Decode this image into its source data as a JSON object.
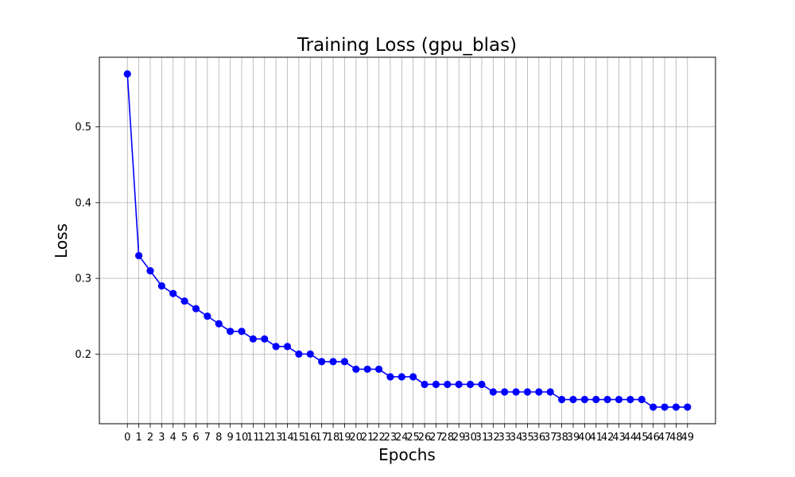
{
  "chart_data": {
    "type": "line",
    "title": "Training Loss (gpu_blas)",
    "xlabel": "Epochs",
    "ylabel": "Loss",
    "x": [
      0,
      1,
      2,
      3,
      4,
      5,
      6,
      7,
      8,
      9,
      10,
      11,
      12,
      13,
      14,
      15,
      16,
      17,
      18,
      19,
      20,
      21,
      22,
      23,
      24,
      25,
      26,
      27,
      28,
      29,
      30,
      31,
      32,
      33,
      34,
      35,
      36,
      37,
      38,
      39,
      40,
      41,
      42,
      43,
      44,
      45,
      46,
      47,
      48,
      49
    ],
    "series": [
      {
        "name": "",
        "values": [
          0.57,
          0.33,
          0.31,
          0.29,
          0.28,
          0.27,
          0.26,
          0.25,
          0.24,
          0.23,
          0.23,
          0.22,
          0.22,
          0.21,
          0.21,
          0.2,
          0.2,
          0.19,
          0.19,
          0.19,
          0.18,
          0.18,
          0.18,
          0.17,
          0.17,
          0.17,
          0.16,
          0.16,
          0.16,
          0.16,
          0.16,
          0.16,
          0.15,
          0.15,
          0.15,
          0.15,
          0.15,
          0.15,
          0.14,
          0.14,
          0.14,
          0.14,
          0.14,
          0.14,
          0.14,
          0.14,
          0.13,
          0.13,
          0.13,
          0.13
        ],
        "color": "#0000ff"
      }
    ],
    "xlim": [
      -2.45,
      51.45
    ],
    "ylim": [
      0.108,
      0.592
    ],
    "yticks": [
      "0.2",
      "0.3",
      "0.4",
      "0.5"
    ],
    "grid": true,
    "legend": "none",
    "colors": {
      "line": "#0000ff",
      "marker": "#0000ff",
      "grid": "#b0b0b0",
      "axes": "#000000"
    }
  }
}
